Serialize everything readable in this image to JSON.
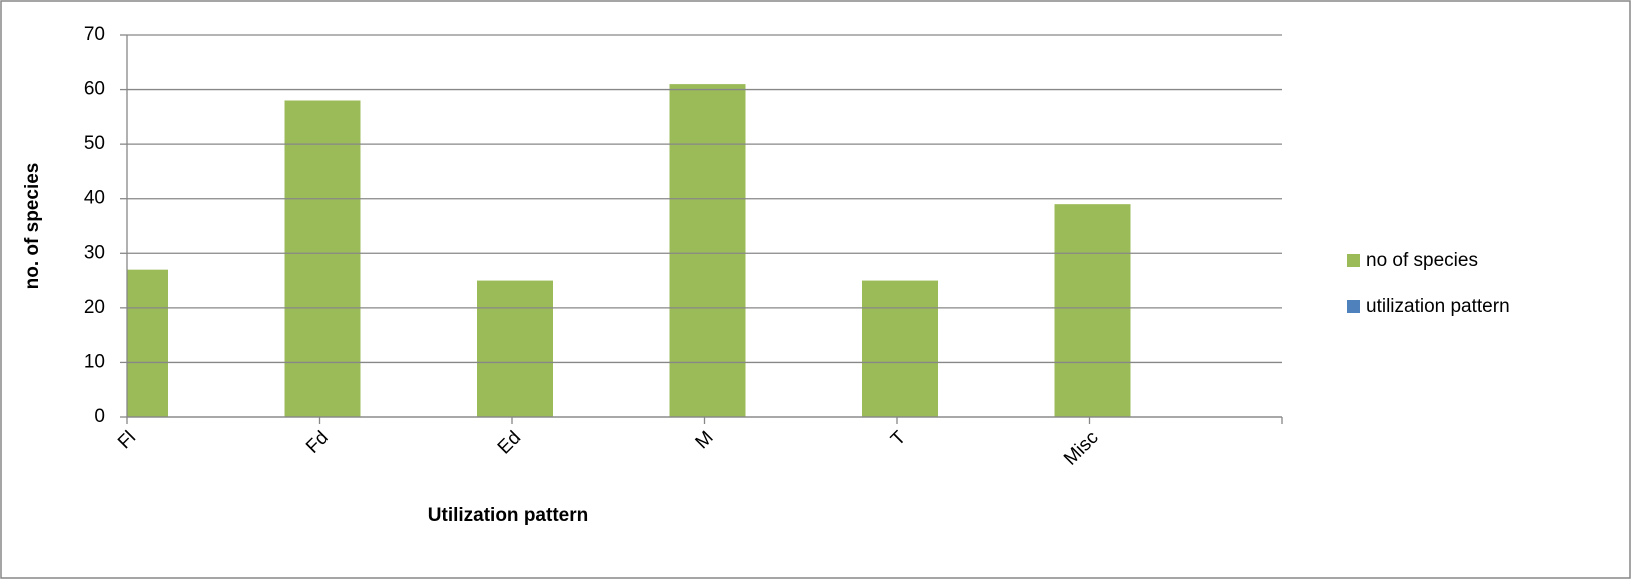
{
  "chart_data": {
    "type": "bar",
    "x_label": "Utilization pattern",
    "y_label": "no. of species",
    "categories": [
      "Fl",
      "Fd",
      "Ed",
      "M",
      "T",
      "Misc"
    ],
    "series": [
      {
        "name": "no of species",
        "color": "#9bbb59",
        "values": [
          27,
          58,
          25,
          61,
          25,
          39
        ]
      },
      {
        "name": "utilization pattern",
        "color": "#4f81bd",
        "values": [
          null,
          null,
          null,
          null,
          null,
          null
        ]
      }
    ],
    "ylim": [
      0,
      70
    ],
    "yticks": [
      0,
      10,
      20,
      30,
      40,
      50,
      60,
      70
    ],
    "grid": true,
    "legend": "right"
  }
}
